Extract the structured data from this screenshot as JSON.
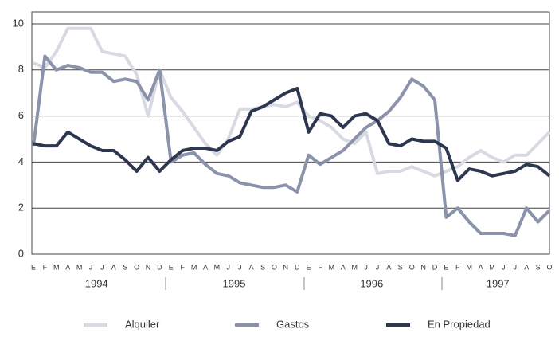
{
  "chart_data": {
    "type": "line",
    "categories": [
      "E",
      "F",
      "M",
      "A",
      "M",
      "J",
      "J",
      "A",
      "S",
      "O",
      "N",
      "D",
      "E",
      "F",
      "M",
      "A",
      "M",
      "J",
      "J",
      "A",
      "S",
      "O",
      "N",
      "D",
      "E",
      "F",
      "M",
      "A",
      "M",
      "J",
      "J",
      "A",
      "S",
      "O",
      "N",
      "D",
      "E",
      "F",
      "M",
      "A",
      "M",
      "J",
      "J",
      "A",
      "S",
      "O"
    ],
    "year_labels": [
      "1994",
      "1995",
      "1996",
      "1997"
    ],
    "series": [
      {
        "name": "Alquiler",
        "color": "#d7dae2",
        "values": [
          8.3,
          8.1,
          8.8,
          9.8,
          9.8,
          9.8,
          8.8,
          8.7,
          8.6,
          7.8,
          6.0,
          8.0,
          6.8,
          6.2,
          5.5,
          4.8,
          4.3,
          5.0,
          6.3,
          6.3,
          6.4,
          6.5,
          6.4,
          6.6,
          6.0,
          5.8,
          5.5,
          5.0,
          4.8,
          5.3,
          3.5,
          3.6,
          3.6,
          3.8,
          3.6,
          3.4,
          3.6,
          3.8,
          4.2,
          4.5,
          4.2,
          4.0,
          4.3,
          4.3,
          4.8,
          5.3
        ]
      },
      {
        "name": "Gastos",
        "color": "#8a93ab",
        "values": [
          4.7,
          8.6,
          8.0,
          8.2,
          8.1,
          7.9,
          7.9,
          7.5,
          7.6,
          7.5,
          6.7,
          8.0,
          4.0,
          4.3,
          4.4,
          3.9,
          3.5,
          3.4,
          3.1,
          3.0,
          2.9,
          2.9,
          3.0,
          2.7,
          4.3,
          3.9,
          4.2,
          4.5,
          5.0,
          5.5,
          5.8,
          6.2,
          6.8,
          7.6,
          7.3,
          6.7,
          1.6,
          2.0,
          1.4,
          0.9,
          0.9,
          0.9,
          0.8,
          2.0,
          1.4,
          1.9
        ]
      },
      {
        "name": "En Propiedad",
        "color": "#2e3750",
        "values": [
          4.8,
          4.7,
          4.7,
          5.3,
          5.0,
          4.7,
          4.5,
          4.5,
          4.1,
          3.6,
          4.2,
          3.6,
          4.1,
          4.5,
          4.6,
          4.6,
          4.5,
          4.9,
          5.1,
          6.2,
          6.4,
          6.7,
          7.0,
          7.2,
          5.3,
          6.1,
          6.0,
          5.5,
          6.0,
          6.1,
          5.8,
          4.8,
          4.7,
          5.0,
          4.9,
          4.9,
          4.6,
          3.2,
          3.7,
          3.6,
          3.4,
          3.5,
          3.6,
          3.9,
          3.8,
          3.4
        ]
      }
    ],
    "ylim": [
      0,
      10
    ],
    "yticks": [
      0,
      2,
      4,
      6,
      8,
      10
    ],
    "grid": true
  }
}
